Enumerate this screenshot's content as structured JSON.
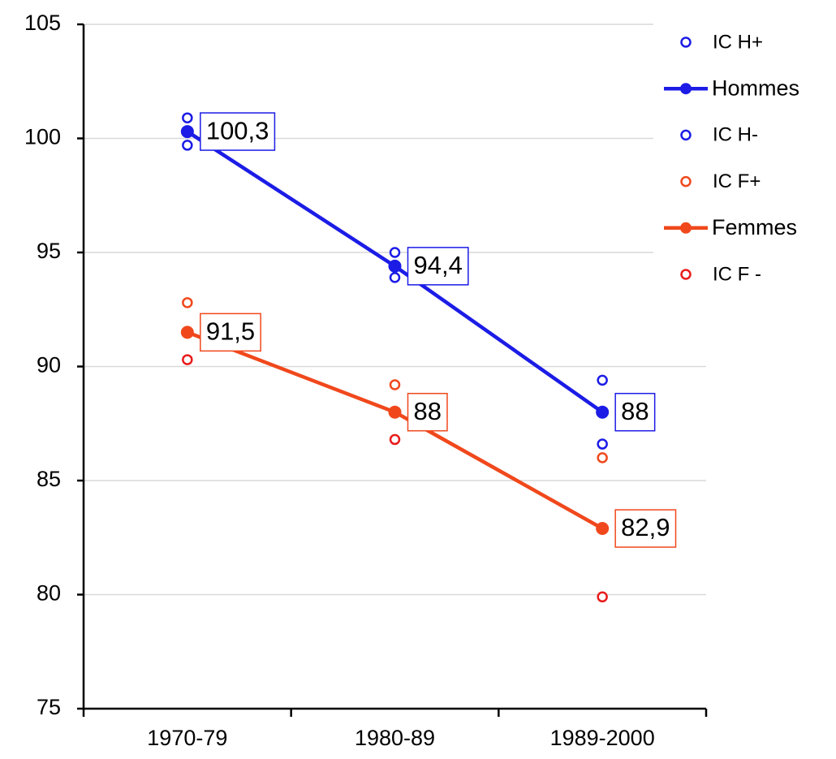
{
  "chart_data": {
    "type": "line",
    "categories": [
      "1970-79",
      "1980-89",
      "1989-2000"
    ],
    "ylim": [
      75,
      105
    ],
    "yticks": [
      75,
      80,
      85,
      90,
      95,
      100,
      105
    ],
    "grid": true,
    "legend": "right",
    "series": [
      {
        "name": "IC H+",
        "color": "#1c1ce6",
        "line": false,
        "values": [
          100.9,
          95.0,
          89.4
        ]
      },
      {
        "name": "Hommes",
        "color": "#1c1ce6",
        "line": true,
        "values": [
          100.3,
          94.4,
          88
        ],
        "value_labels": [
          "100,3",
          "94,4",
          "88"
        ],
        "label_text_color": "#000000"
      },
      {
        "name": "IC H-",
        "color": "#1c1ce6",
        "line": false,
        "values": [
          99.7,
          93.9,
          86.6
        ]
      },
      {
        "name": "IC F+",
        "color": "#f0481c",
        "line": false,
        "values": [
          92.8,
          89.2,
          86.0
        ]
      },
      {
        "name": "Femmes",
        "color": "#f0481c",
        "line": true,
        "values": [
          91.5,
          88,
          82.9
        ],
        "value_labels": [
          "91,5",
          "88",
          "82,9"
        ],
        "label_text_color": "#404040"
      },
      {
        "name": "IC F -",
        "color": "#e81c1c",
        "line": false,
        "values": [
          90.3,
          86.8,
          79.9
        ]
      }
    ]
  }
}
